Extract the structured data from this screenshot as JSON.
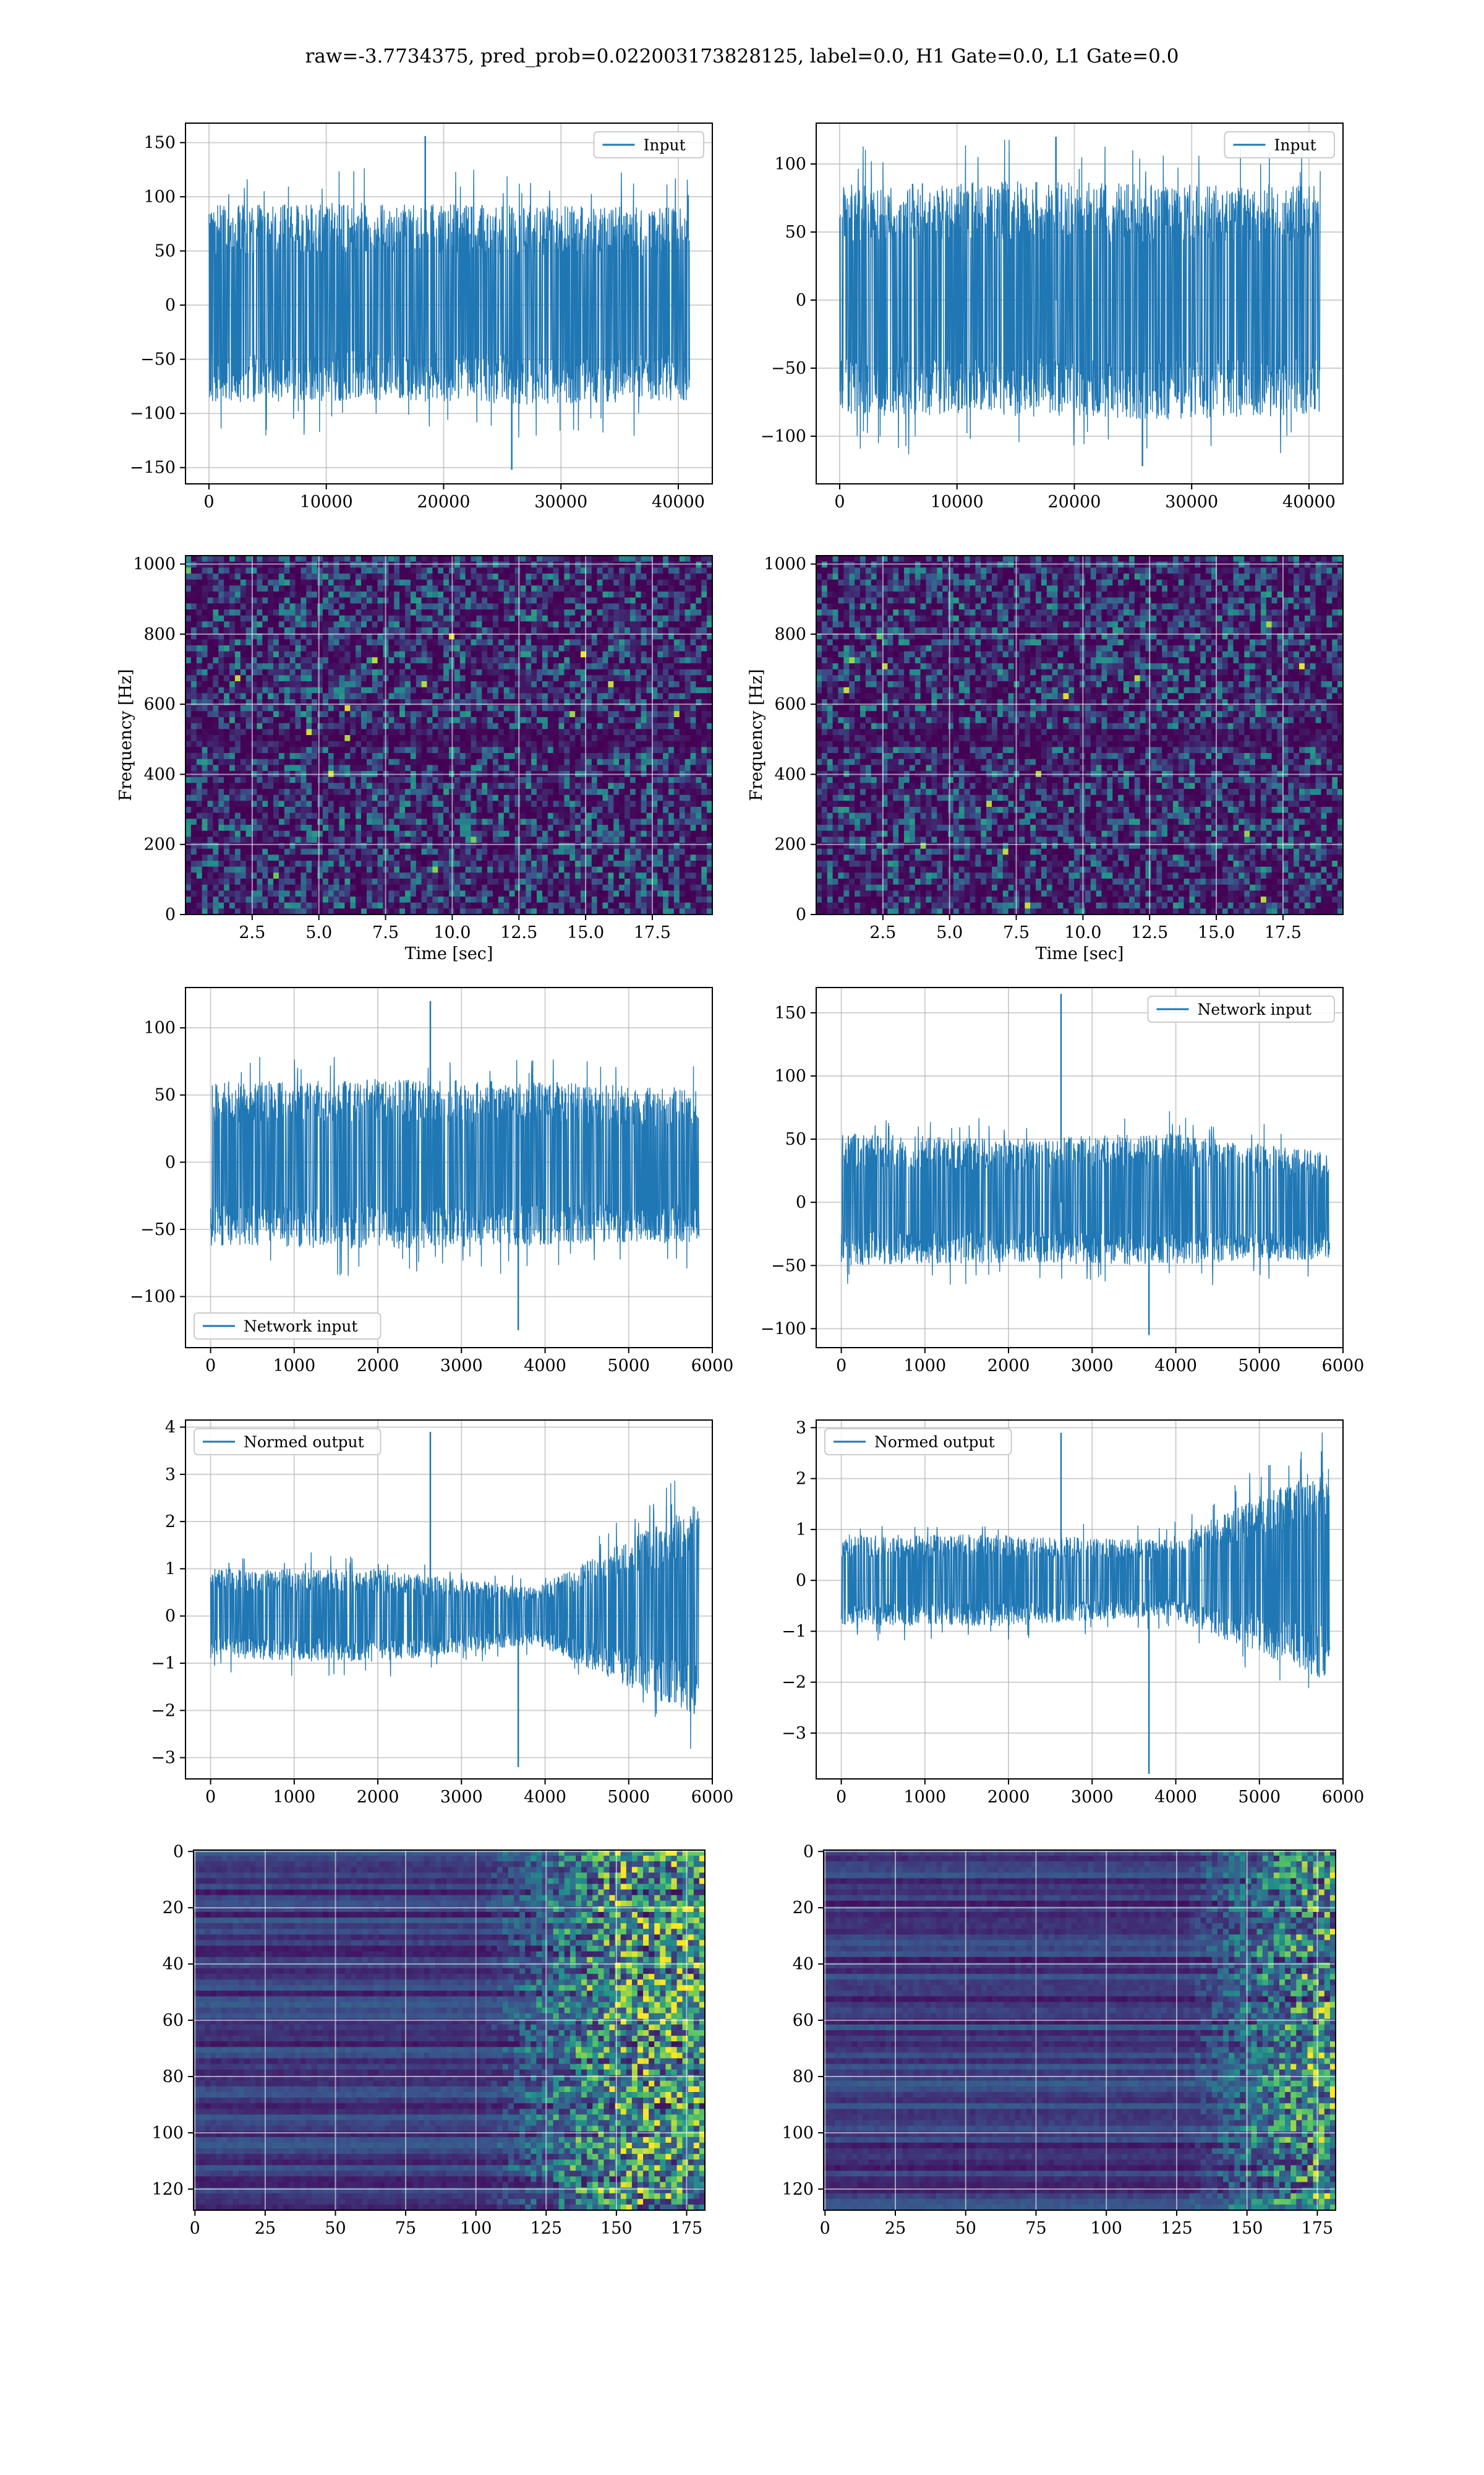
{
  "suptitle": "raw=-3.7734375, pred_prob=0.022003173828125, label=0.0, H1 Gate=0.0, L1 Gate=0.0",
  "colors": {
    "line": "#1f77b4",
    "grid": "#b0b0b0",
    "cmap": [
      "#440154",
      "#3b528b",
      "#21918c",
      "#5ec962",
      "#fde725"
    ]
  },
  "chart_data": [
    {
      "type": "line",
      "panel": "row1-left",
      "xlim": [
        -2000,
        42900
      ],
      "ylim": [
        -165,
        168
      ],
      "xticks": [
        0,
        10000,
        20000,
        30000,
        40000
      ],
      "yticks": [
        -150,
        -100,
        -50,
        0,
        50,
        100,
        150
      ],
      "legend": {
        "label": "Input",
        "loc": "upper right"
      },
      "signal": {
        "x_end": 40960,
        "env_low": [
          -90,
          -88,
          -92,
          -88
        ],
        "env_high": [
          92,
          95,
          92,
          90
        ],
        "spike_max": 156,
        "spike_min": -152,
        "count": 40960
      }
    },
    {
      "type": "line",
      "panel": "row1-right",
      "xlim": [
        -2000,
        42900
      ],
      "ylim": [
        -135,
        130
      ],
      "xticks": [
        0,
        10000,
        20000,
        30000,
        40000
      ],
      "yticks": [
        -100,
        -50,
        0,
        50,
        100
      ],
      "legend": {
        "label": "Input",
        "loc": "upper right"
      },
      "signal": {
        "x_end": 40960,
        "env_low": [
          -85,
          -85,
          -88,
          -85
        ],
        "env_high": [
          85,
          88,
          85,
          85
        ],
        "spike_max": 120,
        "spike_min": -122,
        "count": 40960
      }
    },
    {
      "type": "heatmap",
      "panel": "row2-left",
      "xlabel": "Time [sec]",
      "ylabel": "Frequency [Hz]",
      "xlim": [
        0,
        19.75
      ],
      "ylim": [
        0,
        1024
      ],
      "xticks": [
        2.5,
        5.0,
        7.5,
        10.0,
        12.5,
        15.0,
        17.5
      ],
      "yticks": [
        0,
        200,
        400,
        600,
        800,
        1000
      ],
      "description": "spectrogram noise, dark band near 500 Hz"
    },
    {
      "type": "heatmap",
      "panel": "row2-right",
      "xlabel": "Time [sec]",
      "ylabel": "Frequency [Hz]",
      "xlim": [
        0,
        19.75
      ],
      "ylim": [
        0,
        1024
      ],
      "xticks": [
        2.5,
        5.0,
        7.5,
        10.0,
        12.5,
        15.0,
        17.5
      ],
      "yticks": [
        0,
        200,
        400,
        600,
        800,
        1000
      ],
      "description": "spectrogram noise, dark band near 500 Hz"
    },
    {
      "type": "line",
      "panel": "row3-left",
      "xlim": [
        -300,
        6000
      ],
      "ylim": [
        -138,
        130
      ],
      "xticks": [
        0,
        1000,
        2000,
        3000,
        4000,
        5000,
        6000
      ],
      "yticks": [
        -100,
        -50,
        0,
        50,
        100
      ],
      "legend": {
        "label": "Network input",
        "loc": "lower left"
      },
      "signal": {
        "x_end": 5840,
        "env_low": [
          -62,
          -65,
          -62,
          -60
        ],
        "env_high": [
          60,
          62,
          60,
          55
        ],
        "spike_max": 120,
        "spike_min": -125,
        "count": 5840
      }
    },
    {
      "type": "line",
      "panel": "row3-right",
      "xlim": [
        -300,
        6000
      ],
      "ylim": [
        -115,
        170
      ],
      "xticks": [
        0,
        1000,
        2000,
        3000,
        4000,
        5000,
        6000
      ],
      "yticks": [
        -100,
        -50,
        0,
        50,
        100,
        150
      ],
      "legend": {
        "label": "Network input",
        "loc": "upper right"
      },
      "signal": {
        "x_end": 5840,
        "env_low": [
          -50,
          -48,
          -50,
          -45
        ],
        "env_high": [
          55,
          50,
          55,
          40
        ],
        "spike_max": 165,
        "spike_min": -105,
        "count": 5840
      }
    },
    {
      "type": "line",
      "panel": "row4-left",
      "xlim": [
        -300,
        6000
      ],
      "ylim": [
        -3.45,
        4.15
      ],
      "xticks": [
        0,
        1000,
        2000,
        3000,
        4000,
        5000,
        6000
      ],
      "yticks": [
        -3,
        -2,
        -1,
        0,
        1,
        2,
        3,
        4
      ],
      "legend": {
        "label": "Normed output",
        "loc": "upper left"
      },
      "signal": {
        "x_end": 5840,
        "env_low": [
          -0.9,
          -1.0,
          -0.6,
          -2.2
        ],
        "env_high": [
          1.0,
          1.0,
          0.6,
          2.4
        ],
        "spike_max": 3.9,
        "spike_min": -3.2,
        "count": 5840
      }
    },
    {
      "type": "line",
      "panel": "row4-right",
      "xlim": [
        -300,
        6000
      ],
      "ylim": [
        -3.9,
        3.15
      ],
      "xticks": [
        0,
        1000,
        2000,
        3000,
        4000,
        5000,
        6000
      ],
      "yticks": [
        -3,
        -2,
        -1,
        0,
        1,
        2,
        3
      ],
      "legend": {
        "label": "Normed output",
        "loc": "upper left"
      },
      "signal": {
        "x_end": 5840,
        "env_low": [
          -0.9,
          -0.9,
          -0.7,
          -2.0
        ],
        "env_high": [
          0.9,
          0.9,
          0.8,
          2.3
        ],
        "spike_max": 2.9,
        "spike_min": -3.8,
        "count": 5840
      }
    },
    {
      "type": "heatmap",
      "panel": "row5-left",
      "xlim": [
        -0.5,
        181.5
      ],
      "ylim": [
        127.5,
        -0.5
      ],
      "xticks": [
        0,
        25,
        50,
        75,
        100,
        125,
        150,
        175
      ],
      "yticks": [
        0,
        20,
        40,
        60,
        80,
        100,
        120
      ],
      "description": "feature map, activity increases after column 100"
    },
    {
      "type": "heatmap",
      "panel": "row5-right",
      "xlim": [
        -0.5,
        181.5
      ],
      "ylim": [
        127.5,
        -0.5
      ],
      "xticks": [
        0,
        25,
        50,
        75,
        100,
        125,
        150,
        175
      ],
      "yticks": [
        0,
        20,
        40,
        60,
        80,
        100,
        120
      ],
      "description": "feature map, activity increases after column 125"
    }
  ]
}
